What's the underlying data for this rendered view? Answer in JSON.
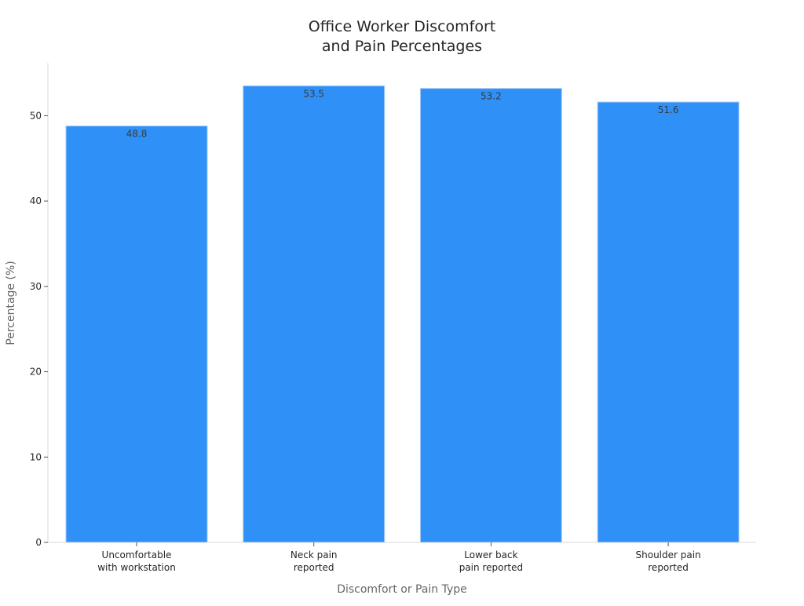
{
  "chart_data": {
    "type": "bar",
    "title_lines": [
      "Office Worker Discomfort",
      "and Pain Percentages"
    ],
    "categories": [
      [
        "Uncomfortable",
        "with workstation"
      ],
      [
        "Neck pain",
        "reported"
      ],
      [
        "Lower back",
        "pain reported"
      ],
      [
        "Shoulder pain",
        "reported"
      ]
    ],
    "values": [
      48.8,
      53.5,
      53.2,
      51.6
    ],
    "data_labels": [
      "48.8",
      "53.5",
      "53.2",
      "51.6"
    ],
    "xlabel": "Discomfort or Pain Type",
    "ylabel": "Percentage (%)",
    "yticks": [
      0,
      10,
      20,
      30,
      40,
      50
    ],
    "ylim": [
      0,
      56.2
    ],
    "bar_color": "#2f91f7",
    "grid": false,
    "legend": "none"
  }
}
